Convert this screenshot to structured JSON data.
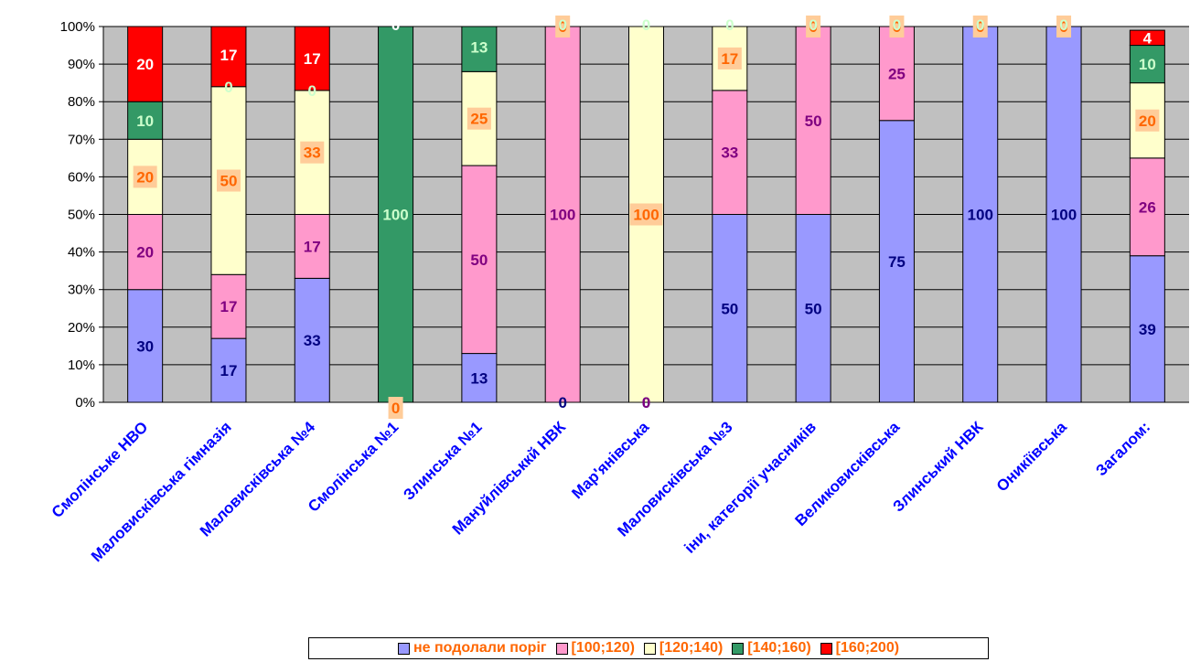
{
  "chart_data": {
    "type": "bar",
    "stacked": true,
    "percent_stacked": true,
    "categories": [
      "Смолінське НВО",
      "Маловисківська гімназія",
      "Маловисківська №4",
      "Смолінська №1",
      "Злинська №1",
      "Мануйлівськкй НВК",
      "Мар'янівська",
      "Маловисківська №3",
      "іни, категорії учасників",
      "Великовисківська",
      "Злинський НВК",
      "Оникіївська",
      "Загалом:"
    ],
    "series": [
      {
        "name": "не подолали поріг",
        "color": "#9999ff",
        "label_color": "#000080",
        "values": [
          30,
          17,
          33,
          0,
          13,
          0,
          0,
          50,
          50,
          75,
          100,
          100,
          39
        ]
      },
      {
        "name": "[100;120)",
        "color": "#ff99cc",
        "label_color": "#800080",
        "values": [
          20,
          17,
          17,
          0,
          50,
          100,
          0,
          33,
          50,
          25,
          0,
          0,
          26
        ]
      },
      {
        "name": "[120;140)",
        "color": "#ffffcc",
        "label_color": "#ff6600",
        "values": [
          20,
          50,
          33,
          0,
          25,
          0,
          100,
          17,
          0,
          0,
          0,
          0,
          20
        ]
      },
      {
        "name": "[140;160)",
        "color": "#339966",
        "label_color": "#ccffcc",
        "values": [
          10,
          0,
          0,
          100,
          13,
          0,
          0,
          0,
          0,
          0,
          0,
          0,
          10
        ]
      },
      {
        "name": "[160;200)",
        "color": "#ff0000",
        "label_color": "#ffffff",
        "values": [
          20,
          17,
          17,
          0,
          0,
          0,
          0,
          0,
          0,
          0,
          0,
          0,
          4
        ]
      }
    ],
    "y_ticks": [
      "0%",
      "10%",
      "20%",
      "30%",
      "40%",
      "50%",
      "60%",
      "70%",
      "80%",
      "90%",
      "100%"
    ],
    "ylim": [
      0,
      100
    ],
    "plot_background": "#c0c0c0",
    "grid": true,
    "legend_position": "bottom",
    "category_label_color": "#0000ff",
    "legend_text_color": "#ff6600",
    "label_box_color": "#ffcc99"
  }
}
